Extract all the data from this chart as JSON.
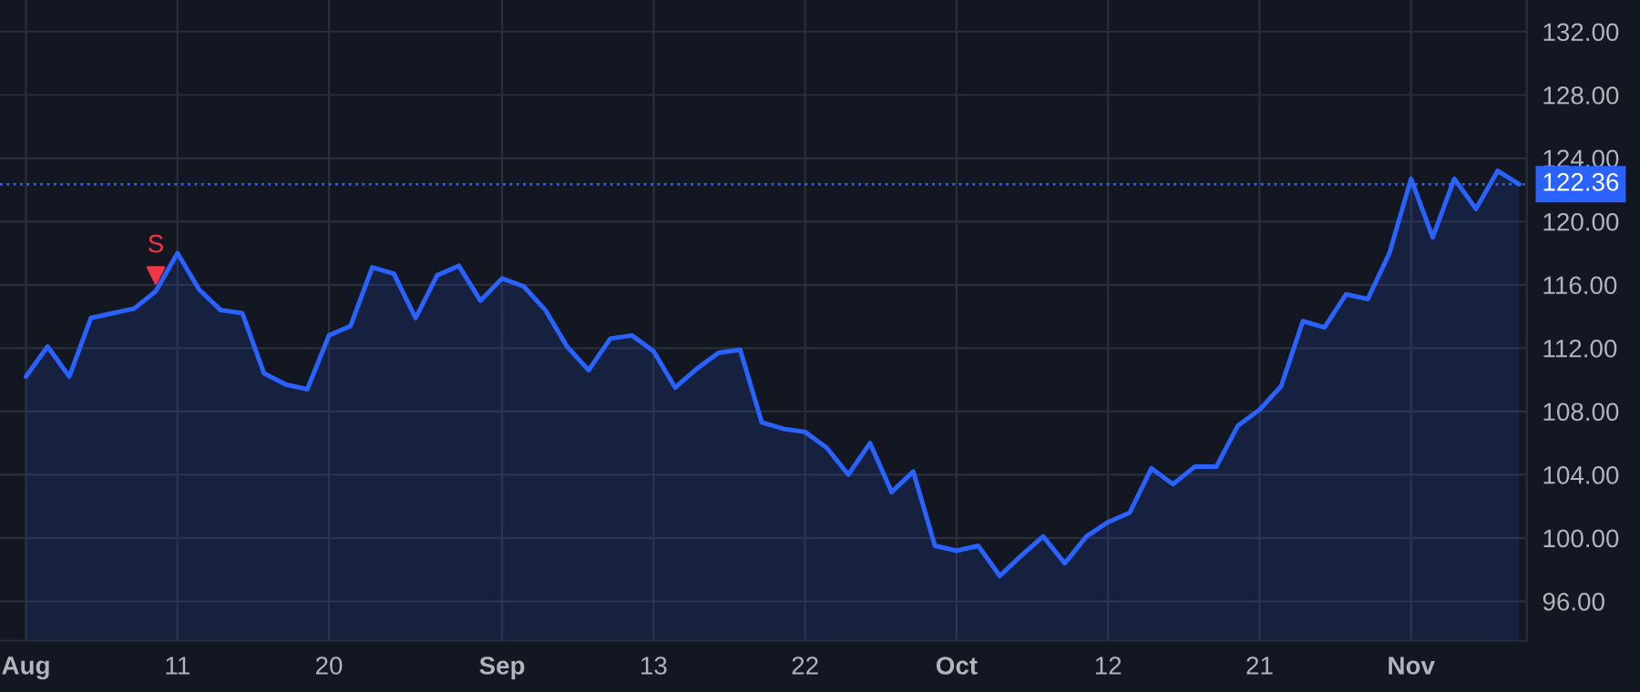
{
  "chart_data": {
    "type": "area",
    "categories": [
      "Aug",
      null,
      null,
      null,
      null,
      null,
      null,
      "11",
      null,
      null,
      null,
      null,
      null,
      null,
      "20",
      null,
      null,
      null,
      null,
      null,
      null,
      null,
      "Sep",
      null,
      null,
      null,
      null,
      null,
      null,
      "13",
      null,
      null,
      null,
      null,
      null,
      null,
      "22",
      null,
      null,
      null,
      null,
      null,
      null,
      "Oct",
      null,
      null,
      null,
      null,
      null,
      null,
      "12",
      null,
      null,
      null,
      null,
      null,
      null,
      "21",
      null,
      null,
      null,
      null,
      null,
      null,
      "Nov",
      null,
      null,
      null,
      null,
      null
    ],
    "series": [
      {
        "color": "#2962ff",
        "values": [
          110.2,
          112.1,
          110.2,
          113.9,
          114.2,
          114.5,
          115.6,
          118.0,
          115.7,
          114.4,
          114.2,
          110.4,
          109.7,
          109.4,
          112.8,
          113.4,
          117.1,
          116.7,
          113.9,
          116.6,
          117.2,
          115.0,
          116.4,
          115.9,
          114.4,
          112.1,
          110.6,
          112.6,
          112.8,
          111.8,
          109.5,
          110.7,
          111.7,
          111.9,
          107.3,
          106.9,
          106.7,
          105.7,
          104.0,
          106.0,
          102.9,
          104.2,
          99.5,
          99.2,
          99.5,
          97.6,
          98.9,
          100.1,
          98.4,
          100.1,
          101.0,
          101.6,
          104.4,
          103.4,
          104.5,
          104.5,
          107.1,
          108.1,
          109.6,
          113.7,
          113.3,
          115.4,
          115.1,
          118.0,
          122.7,
          119.0,
          122.7,
          120.8,
          123.2,
          122.36
        ]
      },
      {
        "type": "scatter",
        "name": "S",
        "color": "#f23645",
        "marker": "triangle",
        "values": [
          null,
          null,
          null,
          null,
          null,
          null,
          116.6,
          null,
          null,
          null,
          null,
          null,
          null,
          null,
          null,
          null,
          null,
          null,
          null,
          null,
          null,
          null,
          null,
          null,
          null,
          null,
          null,
          null,
          null,
          null,
          null,
          null,
          null,
          null,
          null,
          null,
          null,
          null,
          null,
          null,
          null,
          null,
          null,
          null,
          null,
          null,
          null,
          null,
          null,
          null,
          null,
          null,
          null,
          null,
          null,
          null,
          null,
          null,
          null,
          null,
          null,
          null,
          null,
          null,
          null,
          null,
          null,
          null,
          null,
          null
        ]
      }
    ],
    "ylim": [
      93.5,
      134
    ],
    "yticks": [
      {
        "value": 96,
        "label": "96.00"
      },
      {
        "value": 100,
        "label": "100.00"
      },
      {
        "value": 104,
        "label": "104.00"
      },
      {
        "value": 108,
        "label": "108.00"
      },
      {
        "value": 112,
        "label": "112.00"
      },
      {
        "value": 116,
        "label": "116.00"
      },
      {
        "value": 120,
        "label": "120.00"
      },
      {
        "value": 124,
        "label": "124.00"
      },
      {
        "value": 128,
        "label": "128.00"
      },
      {
        "value": 132,
        "label": "132.00"
      }
    ],
    "ref_lines": [
      {
        "axis": "y",
        "value": 122.36,
        "label": "122.36",
        "color": "#2962ff",
        "line_style": "dotted"
      }
    ],
    "grid": true
  }
}
